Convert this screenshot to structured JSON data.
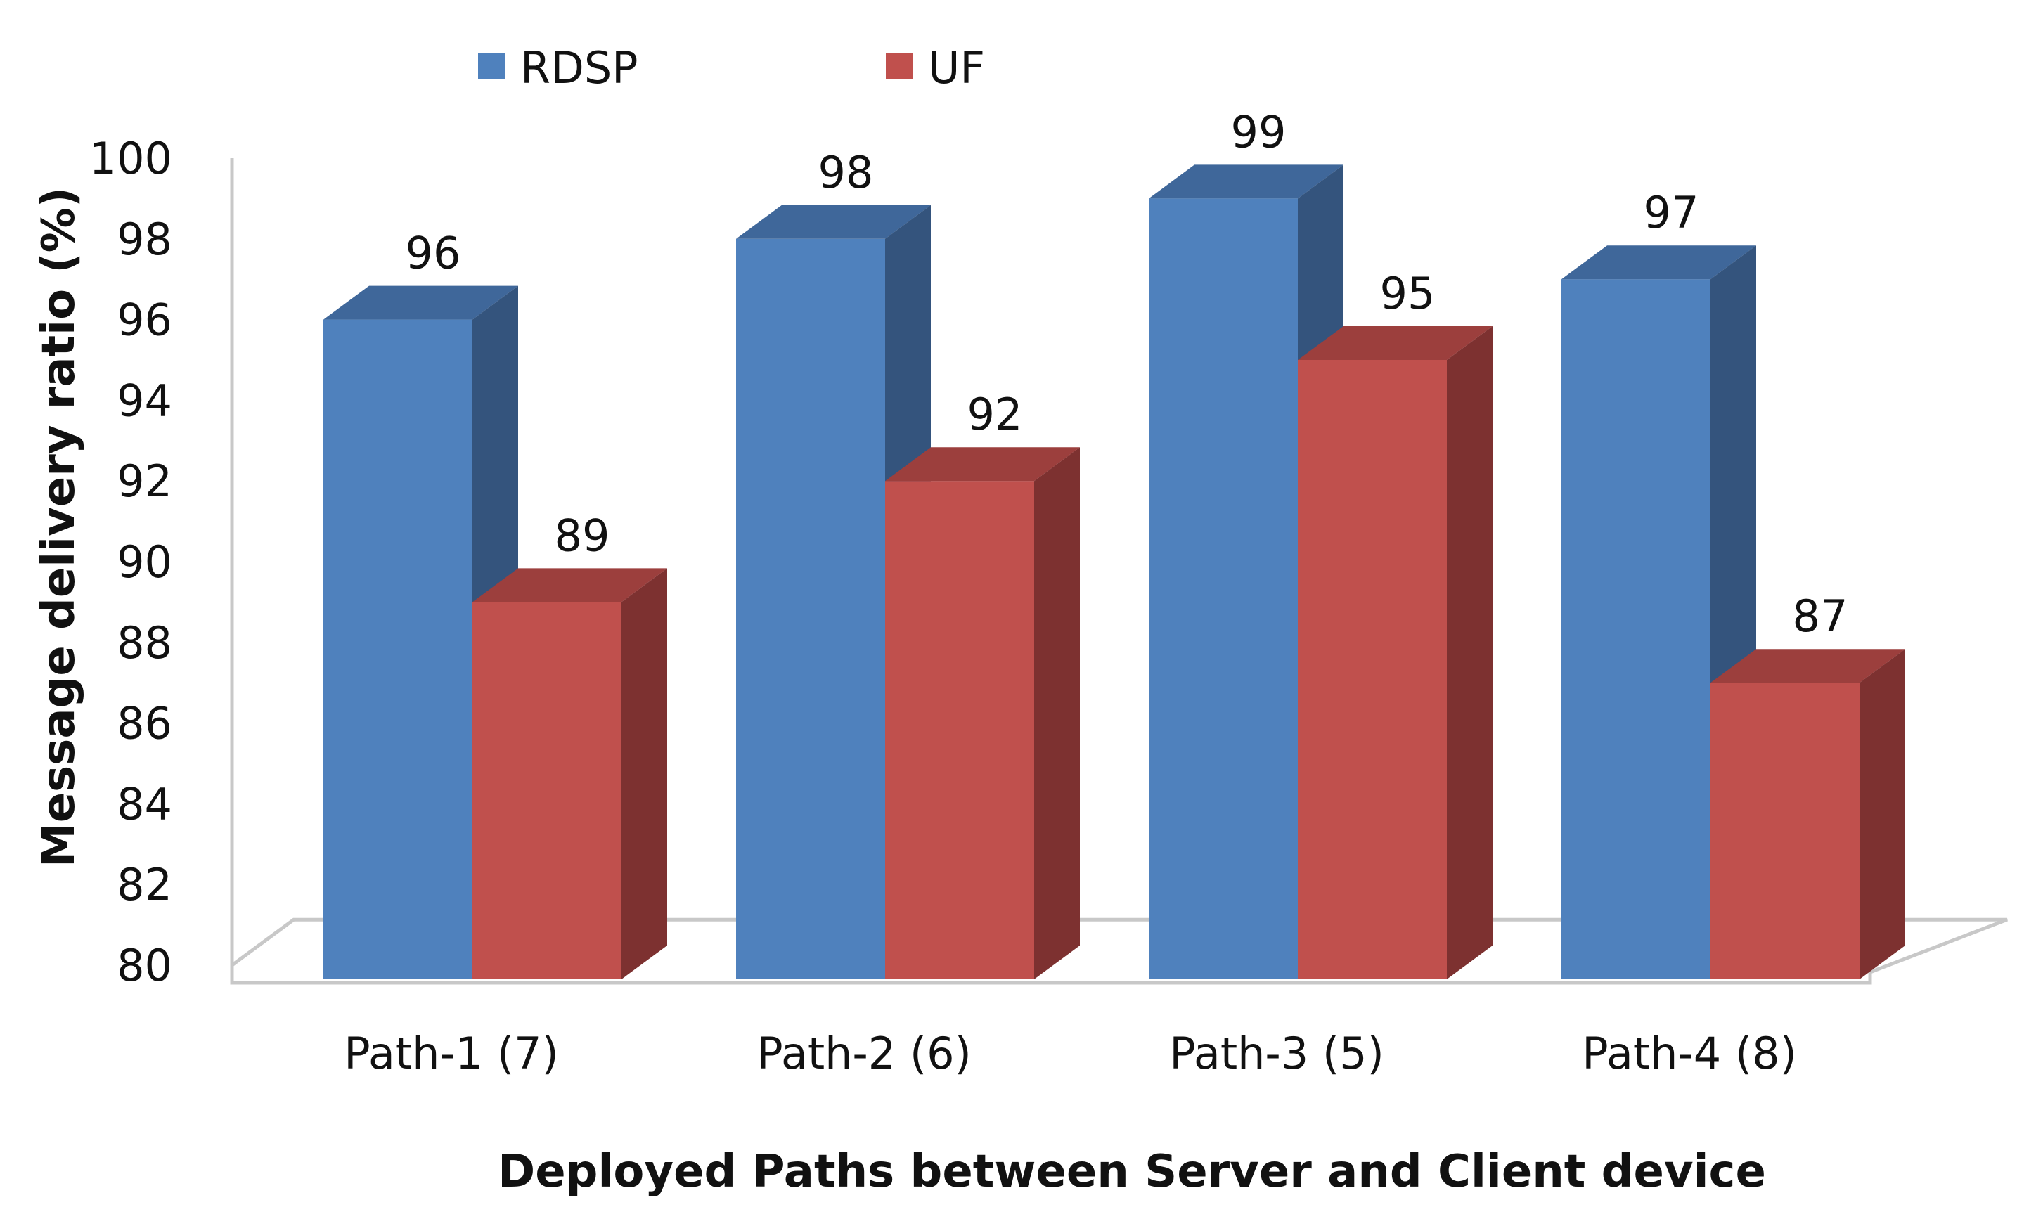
{
  "chart_data": {
    "type": "bar",
    "style": "3d-clustered",
    "title": "",
    "xlabel": "Deployed Paths between Server and Client device",
    "ylabel": "Message  delivery ratio  (%)",
    "ylim": [
      80,
      100
    ],
    "yticks": [
      80,
      82,
      84,
      86,
      88,
      90,
      92,
      94,
      96,
      98,
      100
    ],
    "categories": [
      "Path-1 (7)",
      "Path-2 (6)",
      "Path-3 (5)",
      "Path-4 (8)"
    ],
    "series": [
      {
        "name": "RDSP",
        "values": [
          96,
          98,
          99,
          97
        ],
        "color": "#4f81bd",
        "side_color": "#34547d",
        "top_color": "#3f679a"
      },
      {
        "name": "UF",
        "values": [
          89,
          92,
          95,
          87
        ],
        "color": "#c0504d",
        "side_color": "#7d3130",
        "top_color": "#9c3f3d"
      }
    ],
    "legend_position": "top",
    "grid": false
  }
}
